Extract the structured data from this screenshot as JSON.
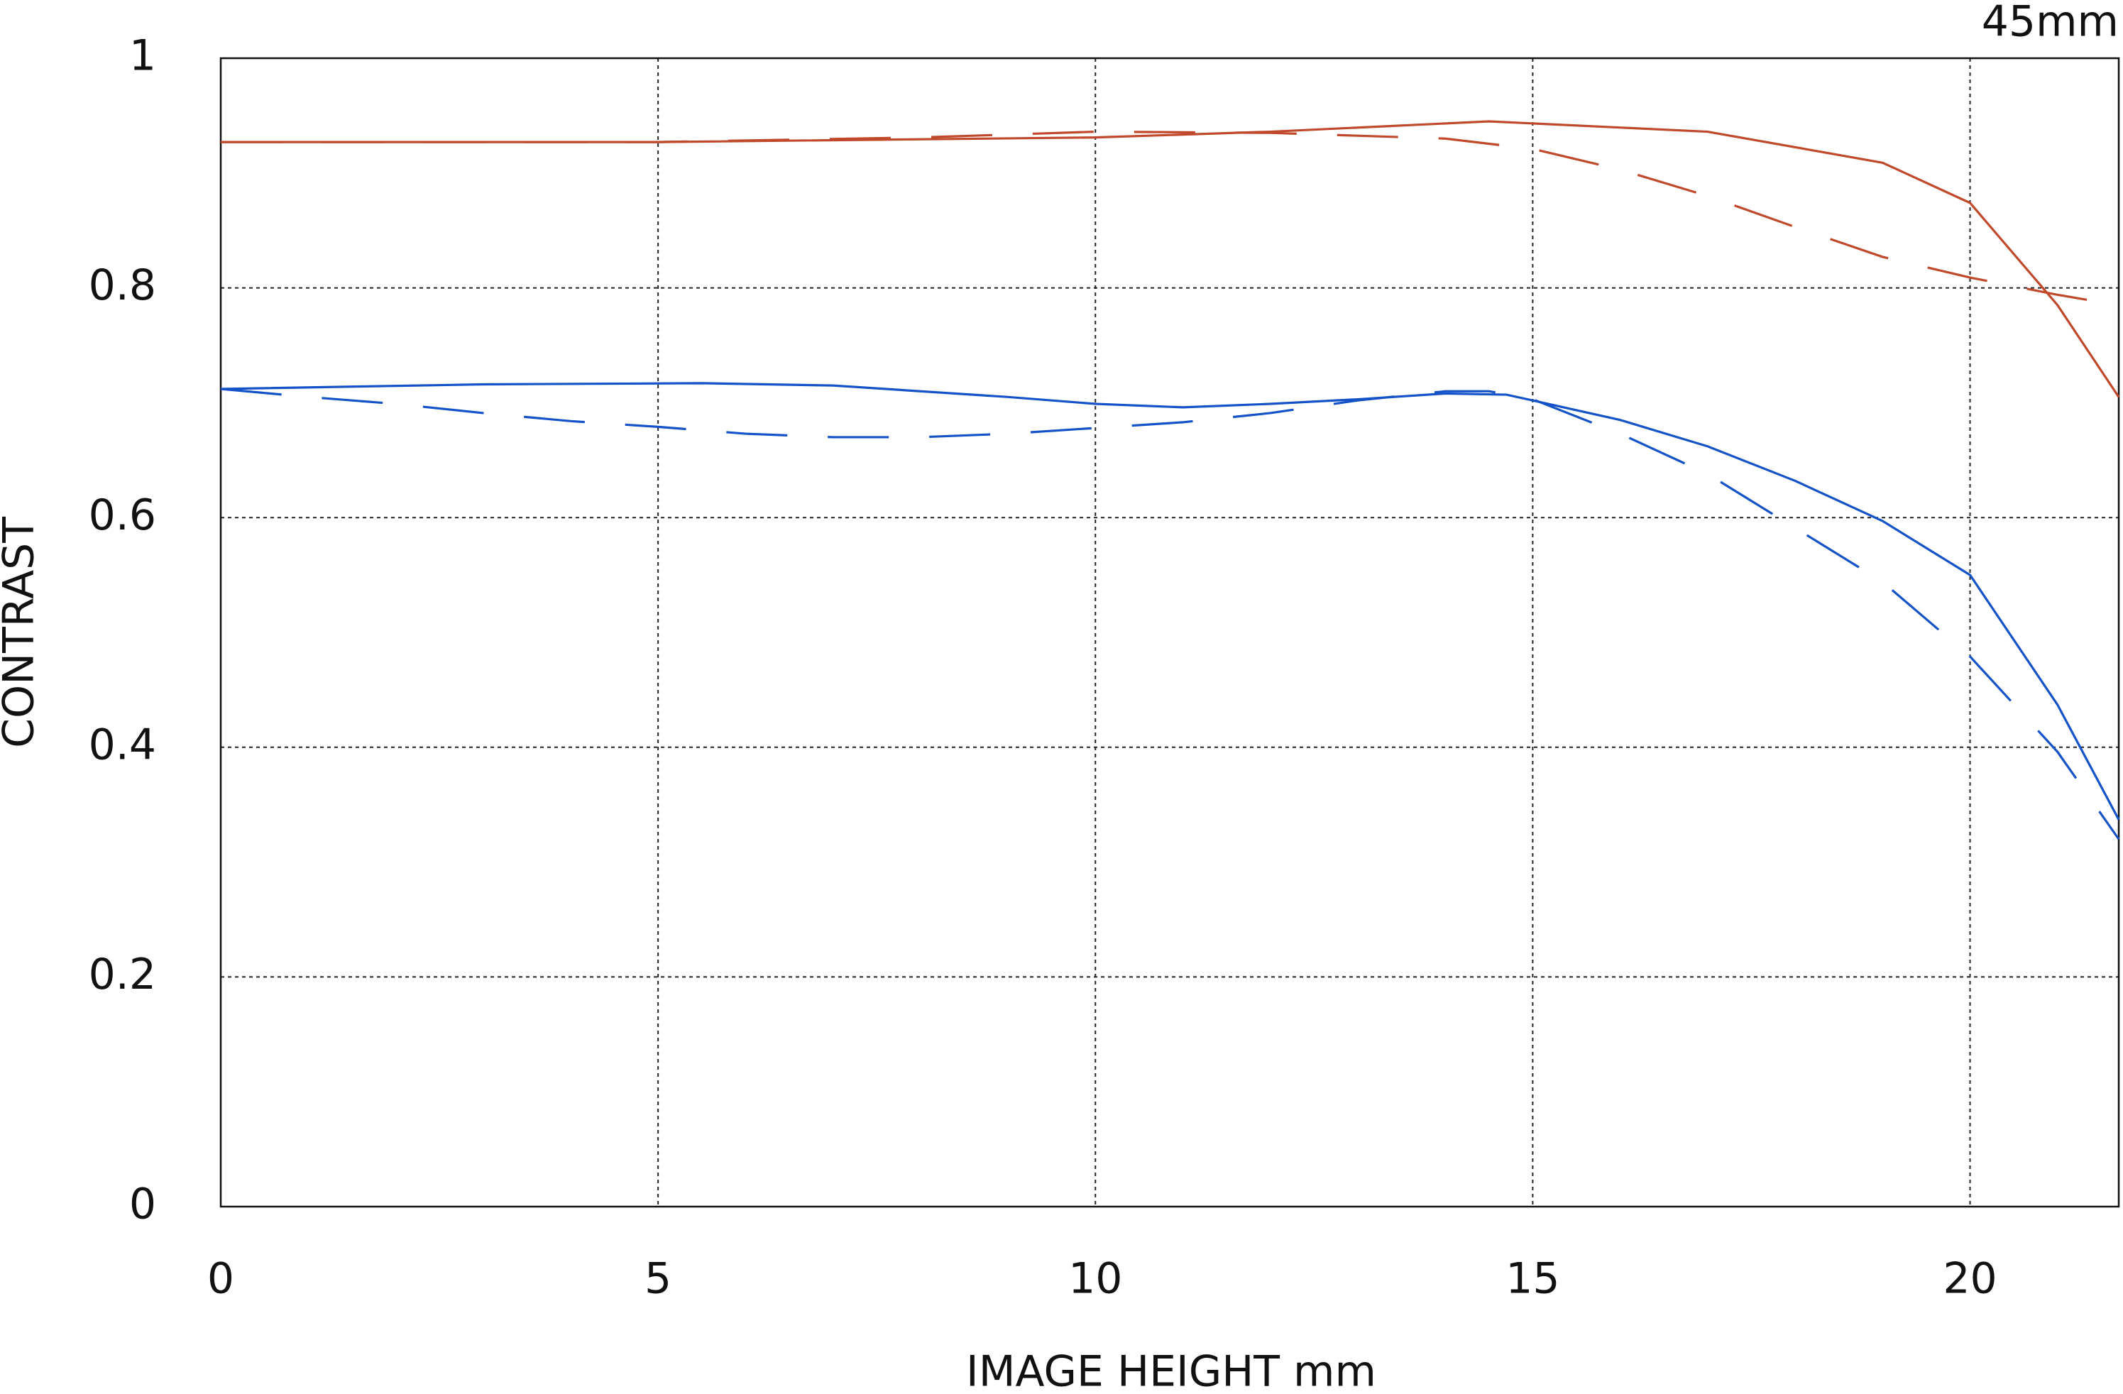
{
  "chart_data": {
    "type": "line",
    "annotation": "45mm",
    "xlabel": "IMAGE HEIGHT  mm",
    "ylabel": "CONTRAST",
    "xlim": [
      0,
      21.7
    ],
    "xticks": [
      0,
      5,
      10,
      15,
      20
    ],
    "ylim": [
      0,
      1
    ],
    "yticks": [
      0,
      0.2,
      0.4,
      0.6,
      0.8,
      1
    ],
    "grid": true,
    "series": [
      {
        "color": "#c0492b",
        "dash": false,
        "x": [
          0,
          5,
          10,
          12,
          14.5,
          17,
          19,
          20,
          21,
          21.7
        ],
        "values": [
          0.927,
          0.927,
          0.931,
          0.936,
          0.945,
          0.936,
          0.909,
          0.874,
          0.785,
          0.705
        ]
      },
      {
        "color": "#c0492b",
        "dash": true,
        "x": [
          0,
          5,
          8,
          10,
          12,
          14,
          15,
          16,
          17,
          18,
          19,
          20,
          21,
          21.7
        ],
        "values": [
          0.927,
          0.927,
          0.931,
          0.936,
          0.935,
          0.93,
          0.921,
          0.903,
          0.88,
          0.853,
          0.827,
          0.809,
          0.794,
          0.785
        ]
      },
      {
        "color": "#1452c8",
        "dash": false,
        "x": [
          0,
          3,
          5.5,
          7,
          9,
          10,
          11,
          12,
          13,
          14,
          14.7,
          15,
          16,
          17,
          18,
          19,
          20,
          21,
          21.7
        ],
        "values": [
          0.712,
          0.716,
          0.717,
          0.715,
          0.705,
          0.699,
          0.696,
          0.699,
          0.703,
          0.708,
          0.707,
          0.702,
          0.685,
          0.662,
          0.632,
          0.597,
          0.55,
          0.437,
          0.337
        ]
      },
      {
        "color": "#1452c8",
        "dash": true,
        "x": [
          0,
          1,
          2,
          3,
          4,
          5,
          6,
          7,
          8,
          9,
          10,
          11,
          12,
          13,
          14,
          14.5,
          15,
          16,
          17,
          18,
          19,
          20,
          21,
          21.7
        ],
        "values": [
          0.712,
          0.705,
          0.699,
          0.691,
          0.684,
          0.679,
          0.673,
          0.67,
          0.67,
          0.673,
          0.678,
          0.683,
          0.691,
          0.702,
          0.71,
          0.71,
          0.703,
          0.673,
          0.638,
          0.591,
          0.544,
          0.479,
          0.396,
          0.32
        ]
      }
    ]
  }
}
